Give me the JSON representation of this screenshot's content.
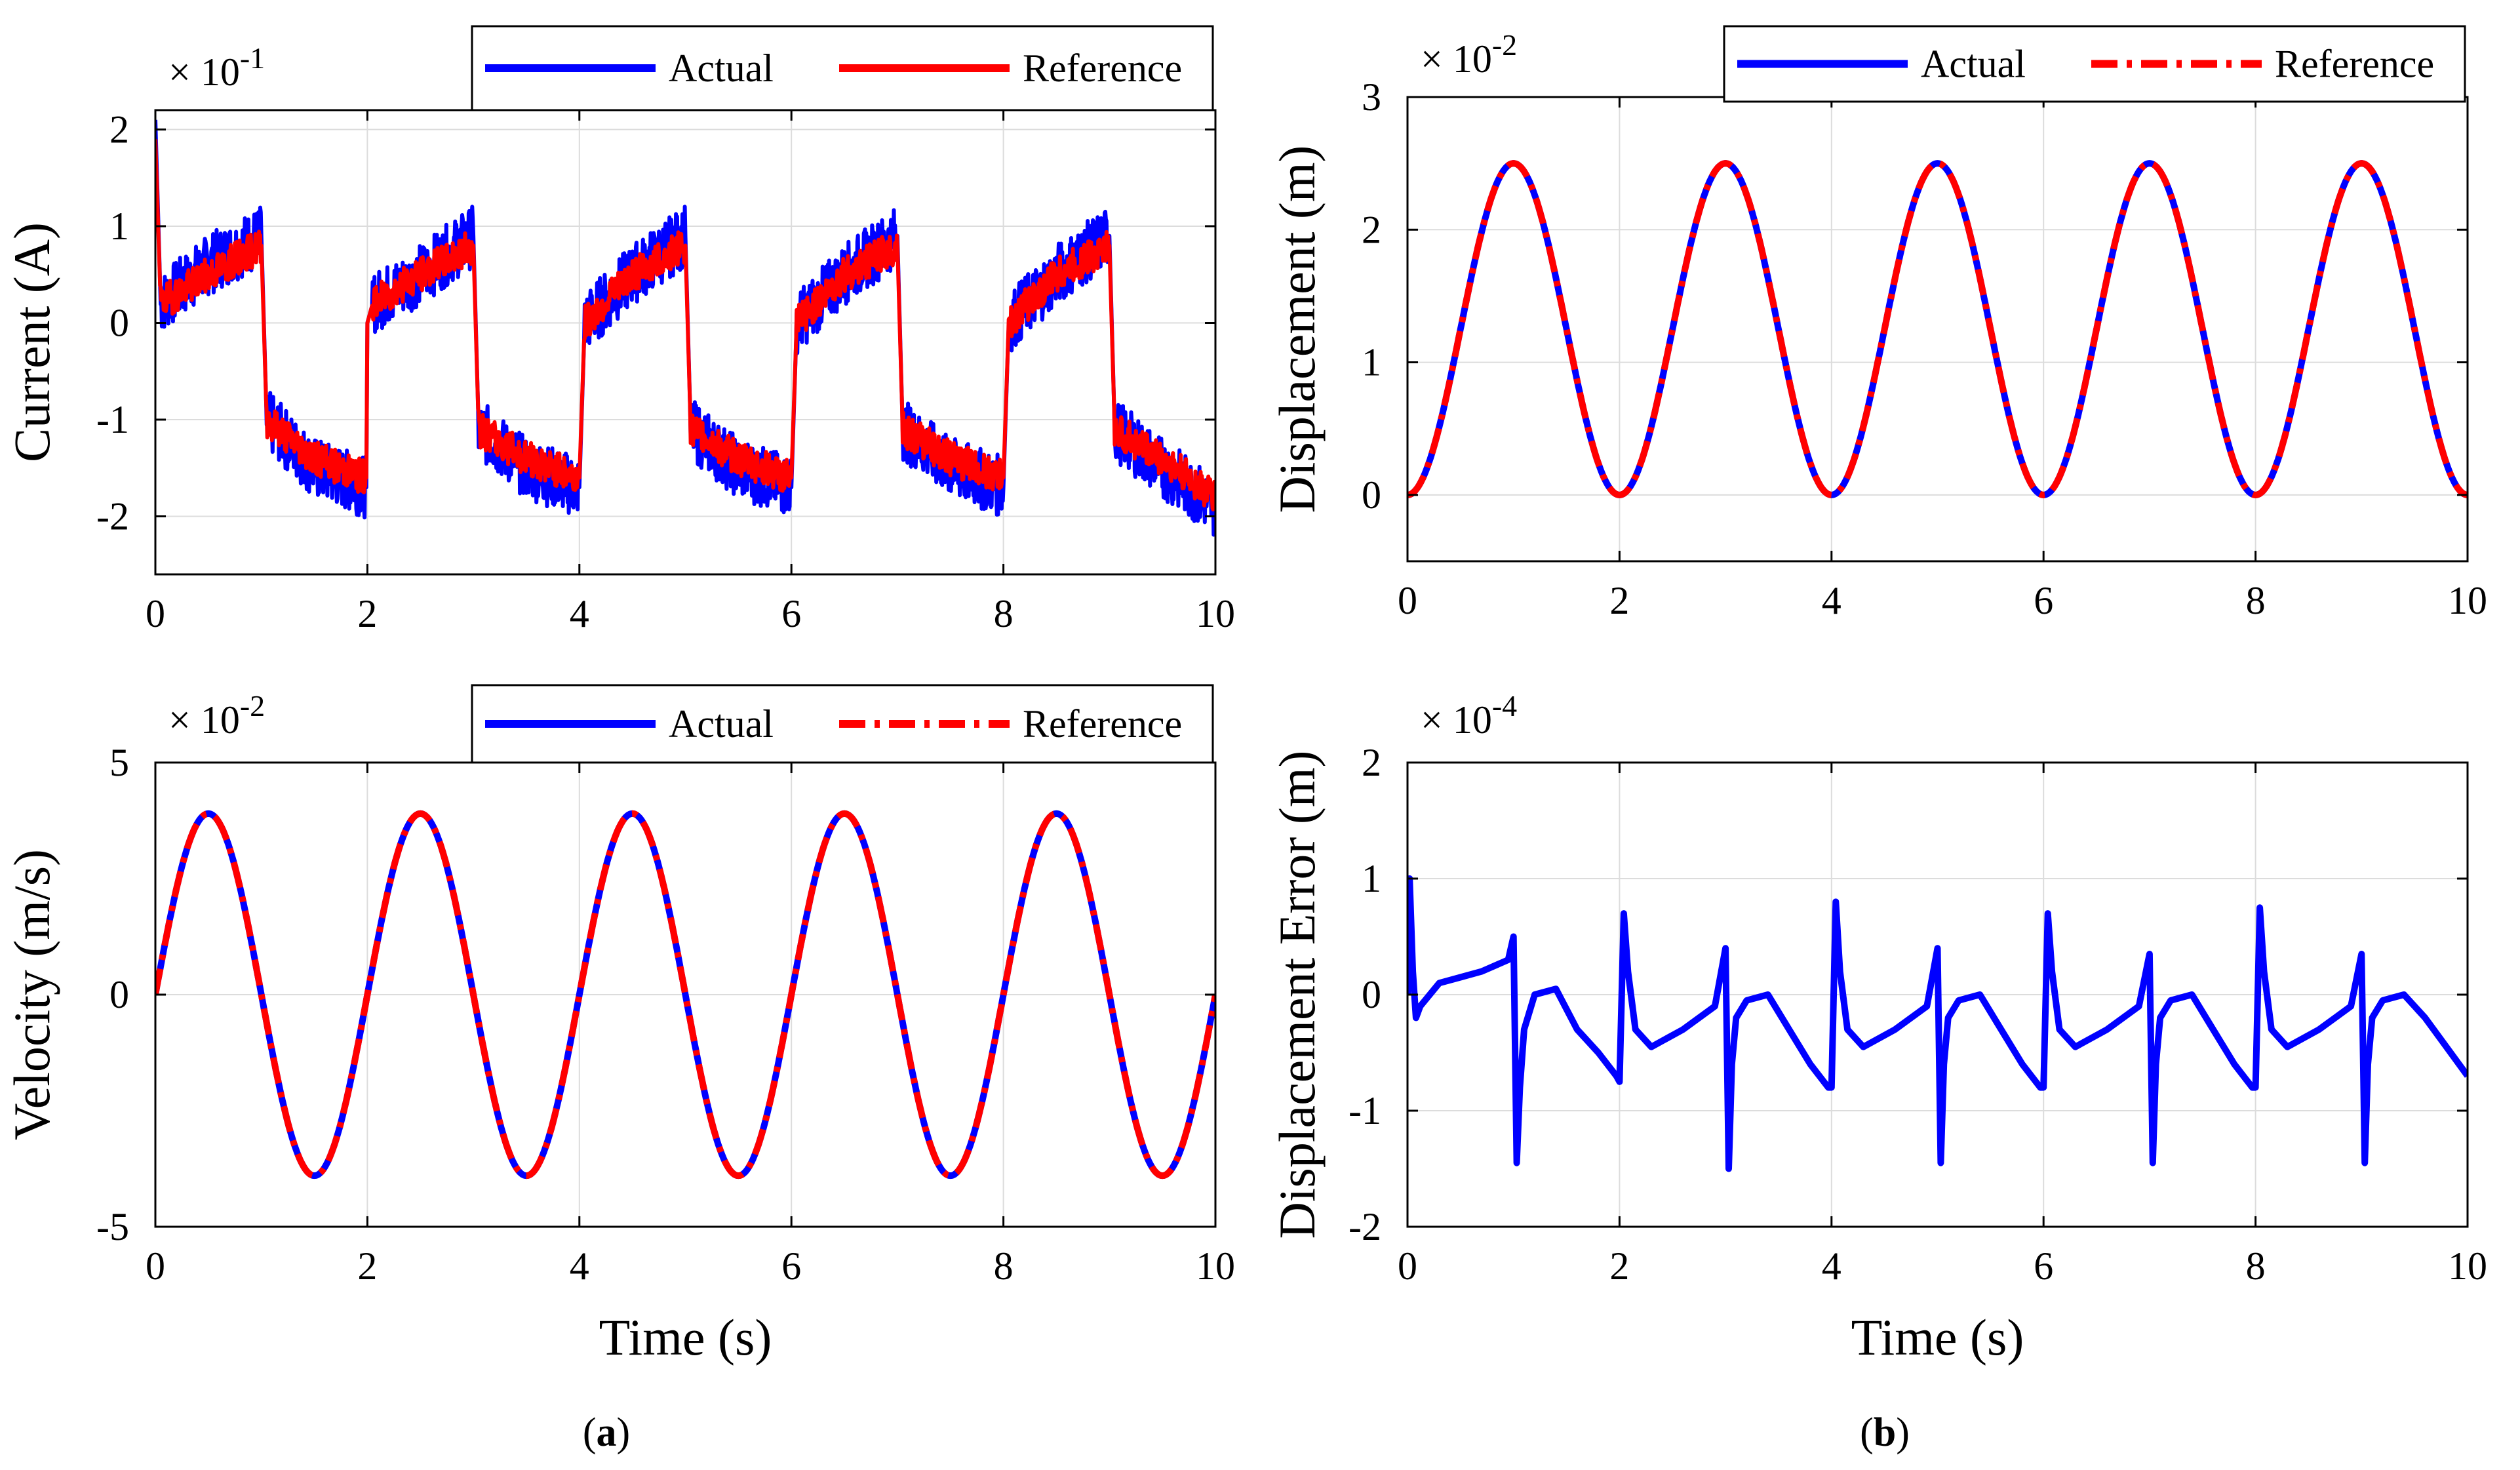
{
  "chart_data": [
    {
      "type": "line",
      "panel": "current",
      "title": "",
      "xlabel": "",
      "ylabel": "Current (A)",
      "multiplier": "× 10",
      "multiplier_exp": "-1",
      "xlim": [
        0,
        10
      ],
      "ylim": [
        -2.6,
        2.2
      ],
      "xticks": [
        "0",
        "2",
        "4",
        "6",
        "8",
        "10"
      ],
      "yticks": [
        "-2",
        "-1",
        "0",
        "1",
        "2"
      ],
      "grid": true,
      "legend_position": "top-right",
      "series": [
        {
          "name": "Actual",
          "color": "#0000ff",
          "style": "solid",
          "note": "noisy square-wave-like current",
          "x": [
            0,
            0.05,
            0.5,
            1.0,
            1.05,
            1.5,
            1.99,
            2.0,
            2.05,
            2.5,
            3.0,
            3.05,
            3.5,
            4.0,
            4.05,
            4.5,
            5.0,
            5.05,
            5.5,
            6.0,
            6.05,
            6.5,
            7.0,
            7.05,
            7.5,
            8.0,
            8.05,
            8.5,
            9.0,
            9.05,
            9.5,
            10.0
          ],
          "values": [
            2.1,
            0.2,
            0.6,
            0.9,
            -1.0,
            -1.5,
            -1.7,
            0.0,
            0.2,
            0.5,
            0.9,
            -1.1,
            -1.5,
            -1.7,
            0.0,
            0.5,
            0.9,
            -1.1,
            -1.5,
            -1.7,
            0.0,
            0.5,
            0.9,
            -1.1,
            -1.5,
            -1.7,
            0.0,
            0.5,
            0.9,
            -1.1,
            -1.5,
            -1.9
          ]
        },
        {
          "name": "Reference",
          "color": "#ff0000",
          "style": "solid",
          "x": [
            0,
            0.05,
            0.5,
            1.0,
            1.05,
            1.5,
            1.99,
            2.0,
            2.05,
            2.5,
            3.0,
            3.05,
            3.5,
            4.0,
            4.05,
            4.5,
            5.0,
            5.05,
            5.5,
            6.0,
            6.05,
            6.5,
            7.0,
            7.05,
            7.5,
            8.0,
            8.05,
            8.5,
            9.0,
            9.05,
            9.5,
            10.0
          ],
          "values": [
            1.9,
            0.2,
            0.5,
            0.8,
            -1.0,
            -1.4,
            -1.6,
            0.0,
            0.2,
            0.5,
            0.8,
            -1.1,
            -1.4,
            -1.6,
            0.0,
            0.5,
            0.8,
            -1.1,
            -1.4,
            -1.6,
            0.0,
            0.5,
            0.8,
            -1.1,
            -1.4,
            -1.6,
            0.0,
            0.5,
            0.8,
            -1.1,
            -1.4,
            -1.8
          ]
        }
      ]
    },
    {
      "type": "line",
      "panel": "displacement",
      "title": "",
      "xlabel": "",
      "ylabel": "Displacement (m)",
      "multiplier": "× 10",
      "multiplier_exp": "-2",
      "xlim": [
        0,
        10
      ],
      "ylim": [
        -0.5,
        3
      ],
      "xticks": [
        "0",
        "2",
        "4",
        "6",
        "8",
        "10"
      ],
      "yticks": [
        "0",
        "1",
        "2",
        "3"
      ],
      "grid": true,
      "legend_position": "top-right",
      "series": [
        {
          "name": "Actual",
          "color": "#0000ff",
          "style": "solid",
          "x": [
            0,
            0.5,
            1.0,
            1.5,
            2.0,
            2.5,
            3.0,
            3.5,
            4.0,
            4.5,
            5.0,
            5.5,
            6.0,
            6.5,
            7.0,
            7.5,
            8.0,
            8.5,
            9.0,
            9.5,
            10.0
          ],
          "values": [
            0,
            1.25,
            2.5,
            1.25,
            0,
            1.25,
            2.5,
            1.25,
            0,
            1.25,
            2.5,
            1.25,
            0,
            1.25,
            2.5,
            1.25,
            0,
            1.25,
            2.5,
            1.25,
            0
          ]
        },
        {
          "name": "Reference",
          "color": "#ff0000",
          "style": "dash-dot",
          "x": [
            0,
            0.5,
            1.0,
            1.5,
            2.0,
            2.5,
            3.0,
            3.5,
            4.0,
            4.5,
            5.0,
            5.5,
            6.0,
            6.5,
            7.0,
            7.5,
            8.0,
            8.5,
            9.0,
            9.5,
            10.0
          ],
          "values": [
            0,
            1.25,
            2.5,
            1.25,
            0,
            1.25,
            2.5,
            1.25,
            0,
            1.25,
            2.5,
            1.25,
            0,
            1.25,
            2.5,
            1.25,
            0,
            1.25,
            2.5,
            1.25,
            0
          ]
        }
      ]
    },
    {
      "type": "line",
      "panel": "velocity",
      "title": "",
      "xlabel": "Time (s)",
      "ylabel": "Velocity (m/s)",
      "multiplier": "× 10",
      "multiplier_exp": "-2",
      "xlim": [
        0,
        10
      ],
      "ylim": [
        -5,
        5
      ],
      "xticks": [
        "0",
        "2",
        "4",
        "6",
        "8",
        "10"
      ],
      "yticks": [
        "-5",
        "0",
        "5"
      ],
      "grid": true,
      "legend_position": "top-right",
      "series": [
        {
          "name": "Actual",
          "color": "#0000ff",
          "style": "solid",
          "x": [
            0,
            0.5,
            1.0,
            1.5,
            2.0,
            2.5,
            3.0,
            3.5,
            4.0,
            4.5,
            5.0,
            5.5,
            6.0,
            6.5,
            7.0,
            7.5,
            8.0,
            8.5,
            9.0,
            9.5,
            10.0
          ],
          "values": [
            0,
            3.9,
            0,
            -3.9,
            0,
            3.9,
            0,
            -3.9,
            0,
            3.9,
            0,
            -3.9,
            0,
            3.9,
            0,
            -3.9,
            0,
            3.9,
            0,
            -3.9,
            0
          ]
        },
        {
          "name": "Reference",
          "color": "#ff0000",
          "style": "dash-dot",
          "x": [
            0,
            0.5,
            1.0,
            1.5,
            2.0,
            2.5,
            3.0,
            3.5,
            4.0,
            4.5,
            5.0,
            5.5,
            6.0,
            6.5,
            7.0,
            7.5,
            8.0,
            8.5,
            9.0,
            9.5,
            10.0
          ],
          "values": [
            0,
            3.9,
            0,
            -3.9,
            0,
            3.9,
            0,
            -3.9,
            0,
            3.9,
            0,
            -3.9,
            0,
            3.9,
            0,
            -3.9,
            0,
            3.9,
            0,
            -3.9,
            0
          ]
        }
      ]
    },
    {
      "type": "line",
      "panel": "displacement-error",
      "title": "",
      "xlabel": "Time (s)",
      "ylabel": "Displacement Error (m)",
      "multiplier": "× 10",
      "multiplier_exp": "-4",
      "xlim": [
        0,
        10
      ],
      "ylim": [
        -2,
        2
      ],
      "xticks": [
        "0",
        "2",
        "4",
        "6",
        "8",
        "10"
      ],
      "yticks": [
        "-2",
        "-1",
        "0",
        "1",
        "2"
      ],
      "grid": true,
      "series": [
        {
          "color": "#0000ff",
          "style": "solid",
          "x": [
            0.0,
            0.02,
            0.05,
            0.08,
            0.12,
            0.3,
            0.5,
            0.7,
            0.95,
            1.0,
            1.03,
            1.06,
            1.1,
            1.2,
            1.4,
            1.6,
            1.8,
            1.97,
            2.0,
            2.04,
            2.08,
            2.15,
            2.3,
            2.6,
            2.9,
            3.0,
            3.03,
            3.06,
            3.1,
            3.2,
            3.4,
            3.6,
            3.8,
            3.97,
            4.0,
            4.04,
            4.08,
            4.15,
            4.3,
            4.6,
            4.9,
            5.0,
            5.03,
            5.06,
            5.1,
            5.2,
            5.4,
            5.6,
            5.8,
            5.97,
            6.0,
            6.04,
            6.08,
            6.15,
            6.3,
            6.6,
            6.9,
            7.0,
            7.03,
            7.06,
            7.1,
            7.2,
            7.4,
            7.6,
            7.8,
            7.97,
            8.0,
            8.04,
            8.08,
            8.15,
            8.3,
            8.6,
            8.9,
            9.0,
            9.03,
            9.06,
            9.1,
            9.2,
            9.4,
            9.6,
            9.8,
            10.0
          ],
          "values": [
            0.0,
            1.0,
            0.2,
            -0.2,
            -0.1,
            0.1,
            0.15,
            0.2,
            0.3,
            0.5,
            -1.45,
            -0.8,
            -0.3,
            0.0,
            0.05,
            -0.3,
            -0.5,
            -0.7,
            -0.75,
            0.7,
            0.2,
            -0.3,
            -0.45,
            -0.3,
            -0.1,
            0.4,
            -1.5,
            -0.6,
            -0.2,
            -0.05,
            0.0,
            -0.3,
            -0.6,
            -0.8,
            -0.8,
            0.8,
            0.2,
            -0.3,
            -0.45,
            -0.3,
            -0.1,
            0.4,
            -1.45,
            -0.6,
            -0.2,
            -0.05,
            0.0,
            -0.3,
            -0.6,
            -0.8,
            -0.8,
            0.7,
            0.2,
            -0.3,
            -0.45,
            -0.3,
            -0.1,
            0.35,
            -1.45,
            -0.6,
            -0.2,
            -0.05,
            0.0,
            -0.3,
            -0.6,
            -0.8,
            -0.8,
            0.75,
            0.2,
            -0.3,
            -0.45,
            -0.3,
            -0.1,
            0.35,
            -1.45,
            -0.6,
            -0.2,
            -0.05,
            0.0,
            -0.2,
            -0.45,
            -0.7
          ]
        }
      ]
    }
  ],
  "captions": {
    "a": "(a)",
    "b": "(b)"
  },
  "legend": {
    "actual": "Actual",
    "reference": "Reference"
  }
}
